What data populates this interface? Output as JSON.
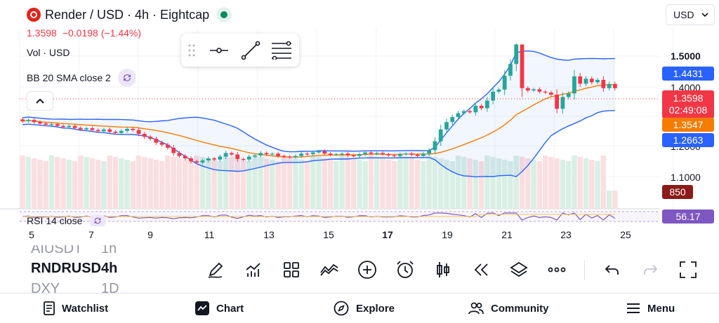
{
  "header": {
    "title": "Render / USD · 4h · Eightcap",
    "price": "1.3598",
    "change": "−0.0198",
    "change_pct": "(−1.44%)",
    "volume_label": "Vol · USD",
    "bb_label": "BB 20 SMA close 2",
    "currency_select": "USD"
  },
  "rsi": {
    "label": "RSI 14 close"
  },
  "price_axis": {
    "labels": [
      "1.5000",
      "1.4000",
      "1.2000",
      "1.1000"
    ],
    "tags": {
      "bb_upper": "1.4431",
      "last_price": "1.3598",
      "countdown": "02:49:08",
      "bb_basis": "1.3547",
      "bb_lower": "1.2663",
      "volume": "850",
      "rsi": "56.17"
    }
  },
  "x_axis": {
    "labels": [
      "5",
      "7",
      "9",
      "11",
      "13",
      "15",
      "17",
      "19",
      "21",
      "23",
      "25"
    ],
    "bold_label": "17"
  },
  "symbols": [
    {
      "symbol": "AIUSDT",
      "interval": "1h"
    },
    {
      "symbol": "RNDRUSD",
      "interval": "4h"
    },
    {
      "symbol": "DXY",
      "interval": "1D"
    }
  ],
  "nav": {
    "watchlist": "Watchlist",
    "chart": "Chart",
    "explore": "Explore",
    "community": "Community",
    "menu": "Menu"
  },
  "colors": {
    "up": "#26a69a",
    "down": "#f23645",
    "bb_band": "#2962ff",
    "bb_basis": "#f57c00",
    "rsi": "#7e57c2",
    "volume_tag": "#8b1a1a"
  },
  "chart_data": {
    "type": "candlestick",
    "y_range": [
      0.97,
      1.54
    ],
    "x_ticks": [
      "5",
      "7",
      "9",
      "11",
      "13",
      "15",
      "17",
      "19",
      "21",
      "23",
      "25"
    ],
    "last_price": 1.3598,
    "bollinger": {
      "period": 20,
      "upper": 1.4431,
      "basis": 1.3547,
      "lower": 1.2663
    },
    "volume_last": 850,
    "rsi_last": 56.17,
    "closes": [
      1.248,
      1.252,
      1.245,
      1.24,
      1.236,
      1.238,
      1.232,
      1.228,
      1.232,
      1.225,
      1.22,
      1.224,
      1.218,
      1.214,
      1.22,
      1.212,
      1.208,
      1.215,
      1.222,
      1.218,
      1.205,
      1.195,
      1.188,
      1.175,
      1.168,
      1.158,
      1.14,
      1.13,
      1.122,
      1.112,
      1.108,
      1.115,
      1.122,
      1.118,
      1.128,
      1.14,
      1.135,
      1.12,
      1.118,
      1.128,
      1.132,
      1.14,
      1.136,
      1.138,
      1.13,
      1.128,
      1.126,
      1.13,
      1.138,
      1.136,
      1.142,
      1.146,
      1.138,
      1.134,
      1.136,
      1.138,
      1.132,
      1.13,
      1.136,
      1.142,
      1.138,
      1.14,
      1.136,
      1.132,
      1.13,
      1.136,
      1.138,
      1.134,
      1.13,
      1.138,
      1.15,
      1.18,
      1.22,
      1.245,
      1.262,
      1.275,
      1.282,
      1.278,
      1.3,
      1.292,
      1.318,
      1.348,
      1.355,
      1.402,
      1.442,
      1.508,
      1.36,
      1.352,
      1.356,
      1.348,
      1.345,
      1.338,
      1.29,
      1.33,
      1.342,
      1.4,
      1.375,
      1.392,
      1.38,
      1.388,
      1.36,
      1.374,
      1.3598
    ]
  }
}
